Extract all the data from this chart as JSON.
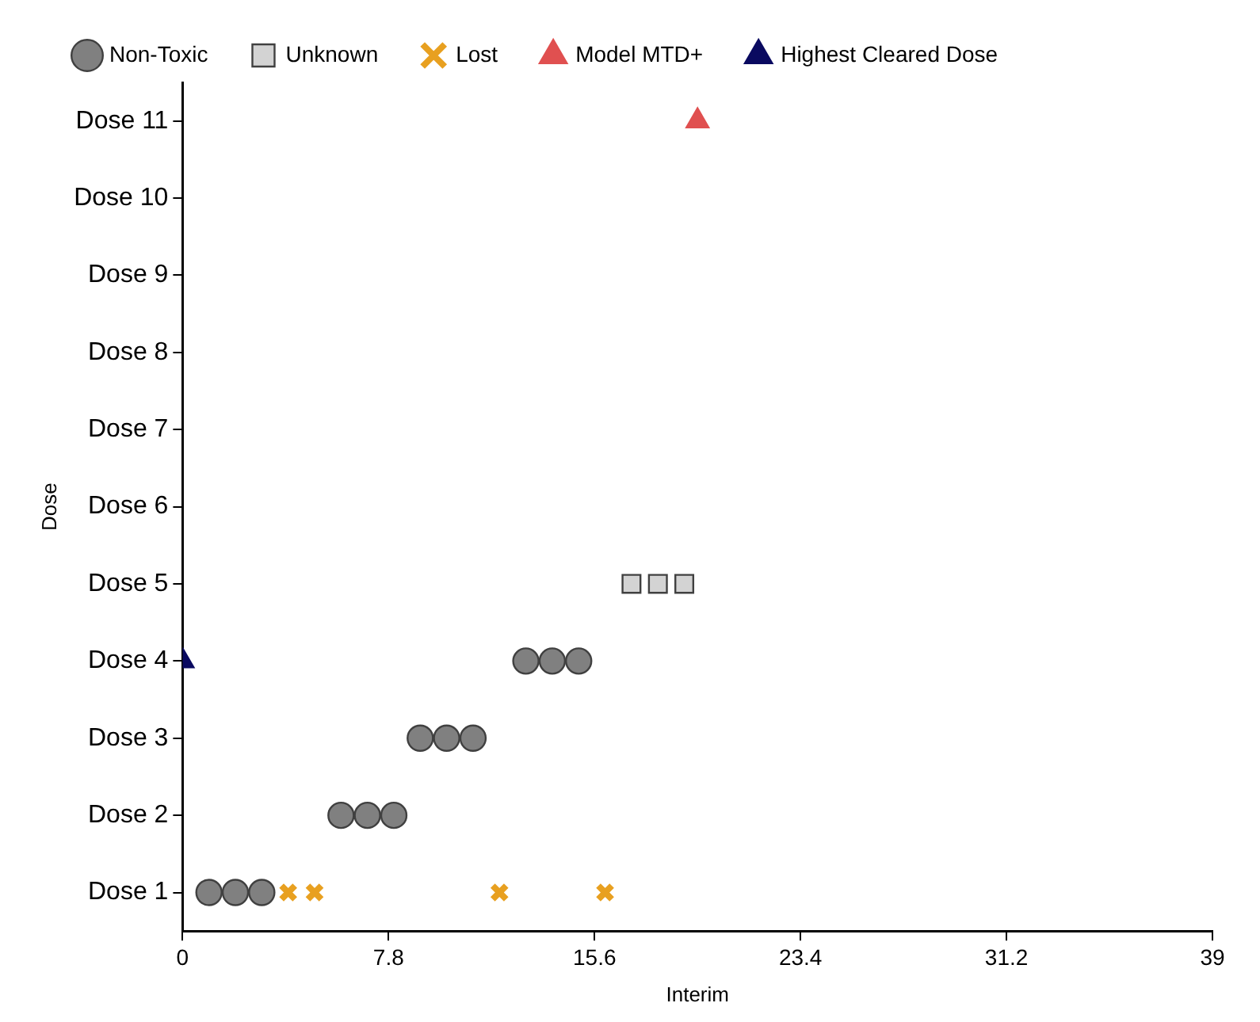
{
  "chart_data": {
    "type": "scatter",
    "orientation": "horizontal",
    "xlabel": "Interim",
    "ylabel": "Dose",
    "legend": "top",
    "grid": false,
    "xlim": [
      0,
      39
    ],
    "xticks": [
      0,
      7.8,
      15.6,
      23.4,
      31.2,
      39
    ],
    "categories": [
      "Dose 11",
      "Dose 10",
      "Dose 9",
      "Dose 8",
      "Dose 7",
      "Dose 6",
      "Dose 5",
      "Dose 4",
      "Dose 3",
      "Dose 2",
      "Dose 1"
    ],
    "series": [
      {
        "name": "Non-Toxic",
        "color": "#808080",
        "marker": "circle",
        "x": [
          "Dose 1",
          "Dose 1",
          "Dose 1",
          "Dose 2",
          "Dose 2",
          "Dose 2",
          "Dose 3",
          "Dose 3",
          "Dose 3",
          "Dose 4",
          "Dose 4",
          "Dose 4"
        ],
        "values": [
          1,
          2,
          3,
          6,
          7,
          8,
          9,
          10,
          11,
          13,
          14,
          15
        ]
      },
      {
        "name": "Unknown",
        "color": "#d3d3d3",
        "marker": "square",
        "x": [
          "Dose 5",
          "Dose 5",
          "Dose 5"
        ],
        "values": [
          17,
          18,
          19
        ]
      },
      {
        "name": "Lost",
        "color": "#e8a020",
        "marker": "cross",
        "x": [
          "Dose 1",
          "Dose 1",
          "Dose 1",
          "Dose 1"
        ],
        "values": [
          4,
          5,
          12,
          16
        ]
      },
      {
        "name": "Model MTD+",
        "color": "#e05050",
        "marker": "triangle",
        "x": [
          "Dose 11"
        ],
        "values": [
          19.5
        ]
      },
      {
        "name": "Highest Cleared Dose",
        "color": "#0a0a60",
        "marker": "triangle",
        "x": [
          "Dose 4"
        ],
        "values": [
          0
        ]
      }
    ]
  }
}
